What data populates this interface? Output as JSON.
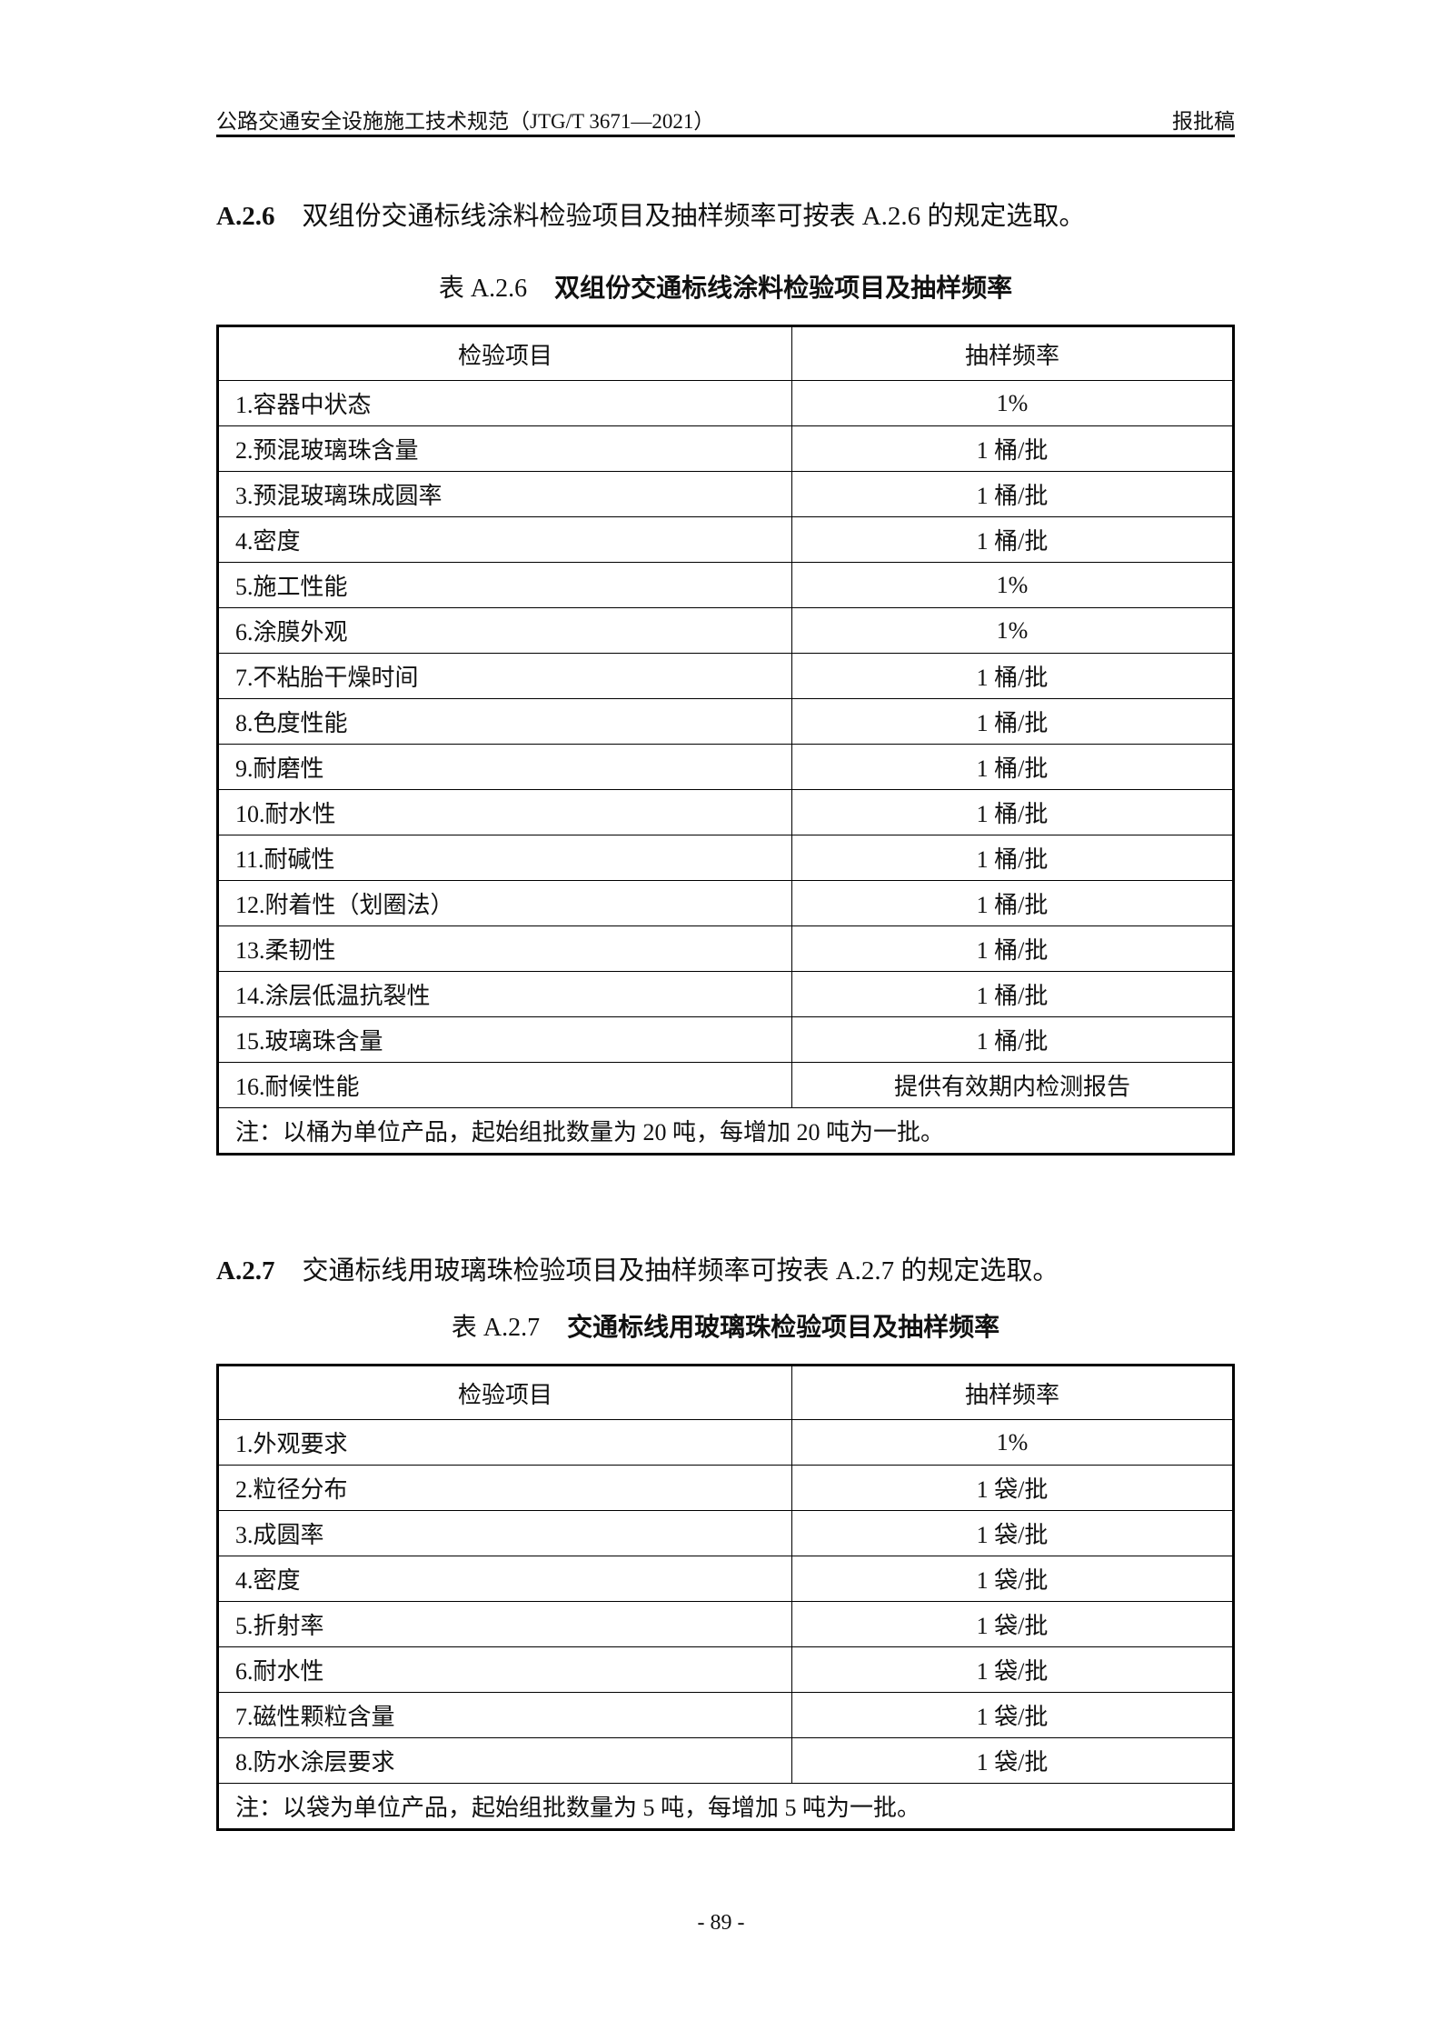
{
  "header": {
    "title": "公路交通安全设施施工技术规范（JTG/T 3671—2021）",
    "status": "报批稿"
  },
  "section_a26": {
    "number": "A.2.6",
    "text": "双组份交通标线涂料检验项目及抽样频率可按表 A.2.6 的规定选取。"
  },
  "table_a26": {
    "caption_number": "表 A.2.6",
    "caption_title": "双组份交通标线涂料检验项目及抽样频率",
    "columns": [
      "检验项目",
      "抽样频率"
    ],
    "rows": [
      [
        "1.容器中状态",
        "1%"
      ],
      [
        "2.预混玻璃珠含量",
        "1 桶/批"
      ],
      [
        "3.预混玻璃珠成圆率",
        "1 桶/批"
      ],
      [
        "4.密度",
        "1 桶/批"
      ],
      [
        "5.施工性能",
        "1%"
      ],
      [
        "6.涂膜外观",
        "1%"
      ],
      [
        "7.不粘胎干燥时间",
        "1 桶/批"
      ],
      [
        "8.色度性能",
        "1 桶/批"
      ],
      [
        "9.耐磨性",
        "1 桶/批"
      ],
      [
        "10.耐水性",
        "1 桶/批"
      ],
      [
        "11.耐碱性",
        "1 桶/批"
      ],
      [
        "12.附着性（划圈法）",
        "1 桶/批"
      ],
      [
        "13.柔韧性",
        "1 桶/批"
      ],
      [
        "14.涂层低温抗裂性",
        "1 桶/批"
      ],
      [
        "15.玻璃珠含量",
        "1 桶/批"
      ],
      [
        "16.耐候性能",
        "提供有效期内检测报告"
      ]
    ],
    "note": "注：以桶为单位产品，起始组批数量为 20 吨，每增加 20 吨为一批。"
  },
  "section_a27": {
    "number": "A.2.7",
    "text": "交通标线用玻璃珠检验项目及抽样频率可按表 A.2.7 的规定选取。"
  },
  "table_a27": {
    "caption_number": "表 A.2.7",
    "caption_title": "交通标线用玻璃珠检验项目及抽样频率",
    "columns": [
      "检验项目",
      "抽样频率"
    ],
    "rows": [
      [
        "1.外观要求",
        "1%"
      ],
      [
        "2.粒径分布",
        "1 袋/批"
      ],
      [
        "3.成圆率",
        "1 袋/批"
      ],
      [
        "4.密度",
        "1 袋/批"
      ],
      [
        "5.折射率",
        "1 袋/批"
      ],
      [
        "6.耐水性",
        "1 袋/批"
      ],
      [
        "7.磁性颗粒含量",
        "1 袋/批"
      ],
      [
        "8.防水涂层要求",
        "1 袋/批"
      ]
    ],
    "note": "注：以袋为单位产品，起始组批数量为 5 吨，每增加 5 吨为一批。"
  },
  "page_number": "- 89 -"
}
